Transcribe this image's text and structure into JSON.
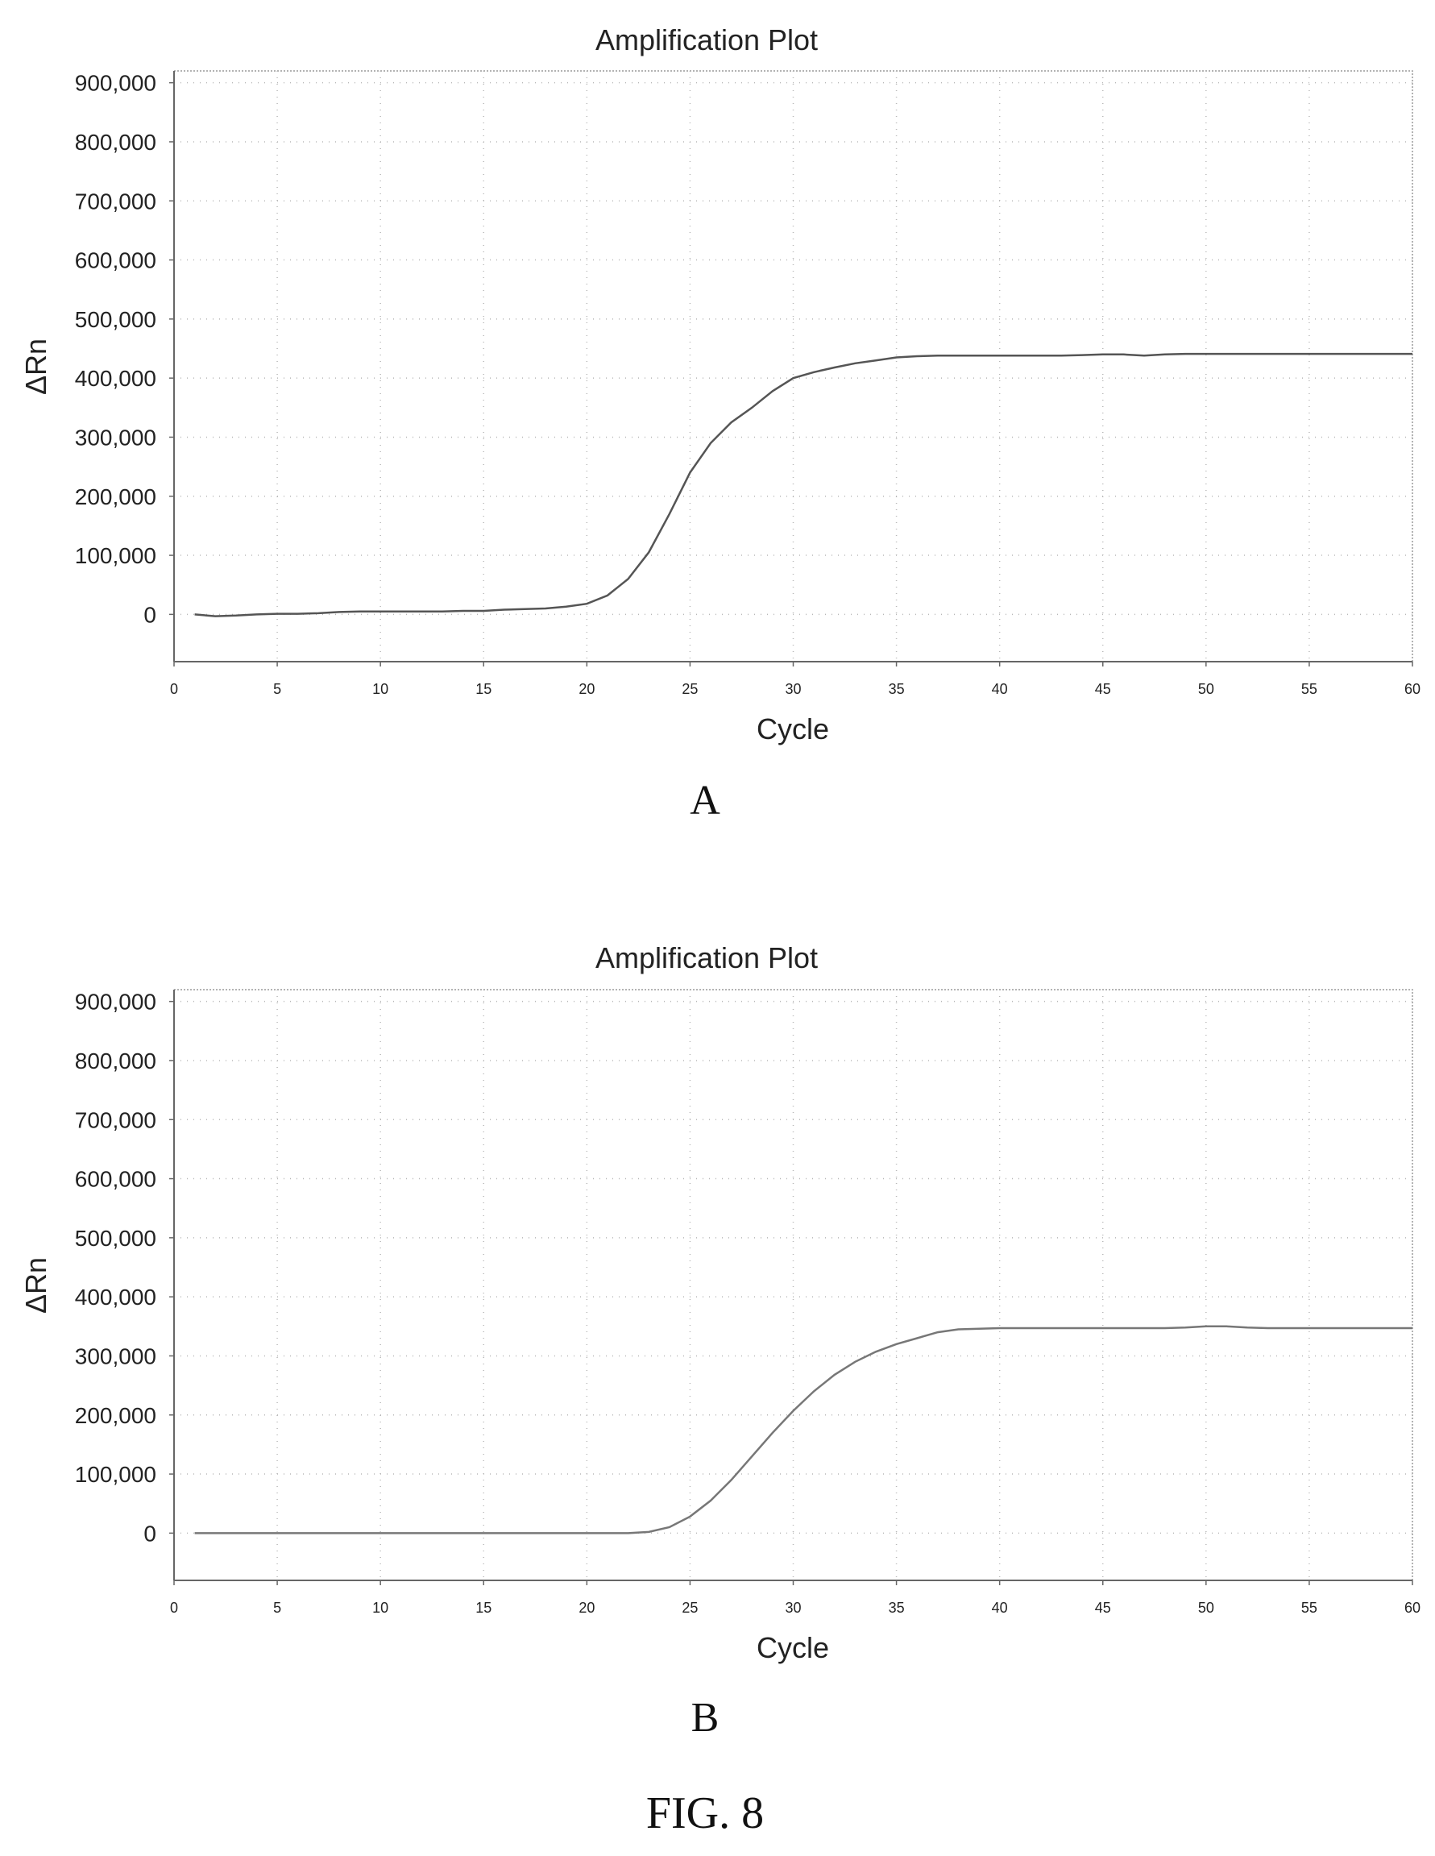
{
  "figure_caption": "FIG. 8",
  "chart_data": [
    {
      "panel": "A",
      "type": "line",
      "title": "Amplification Plot",
      "xlabel": "Cycle",
      "ylabel": "ΔRn",
      "xlim": [
        0,
        60
      ],
      "ylim": [
        -80000,
        920000
      ],
      "xticks": [
        0,
        5,
        10,
        15,
        20,
        25,
        30,
        35,
        40,
        45,
        50,
        55,
        60
      ],
      "yticks": [
        0,
        100000,
        200000,
        300000,
        400000,
        500000,
        600000,
        700000,
        800000,
        900000
      ],
      "ytick_labels": [
        "0",
        "100,000",
        "200,000",
        "300,000",
        "400,000",
        "500,000",
        "600,000",
        "700,000",
        "800,000",
        "900,000"
      ],
      "grid": true,
      "series": [
        {
          "x": [
            1,
            2,
            3,
            4,
            5,
            6,
            7,
            8,
            9,
            10,
            11,
            12,
            13,
            14,
            15,
            16,
            17,
            18,
            19,
            20,
            21,
            22,
            23,
            24,
            25,
            26,
            27,
            28,
            29,
            30,
            31,
            32,
            33,
            34,
            35,
            36,
            37,
            38,
            39,
            40,
            41,
            42,
            43,
            44,
            45,
            46,
            47,
            48,
            49,
            50,
            51,
            52,
            53,
            54,
            55,
            56,
            57,
            58,
            59,
            60
          ],
          "y": [
            0,
            -3000,
            -2000,
            0,
            1000,
            1000,
            2000,
            4000,
            5000,
            5000,
            5000,
            5000,
            5000,
            6000,
            6000,
            8000,
            9000,
            10000,
            13000,
            18000,
            32000,
            60000,
            105000,
            170000,
            240000,
            290000,
            325000,
            350000,
            378000,
            400000,
            410000,
            418000,
            425000,
            430000,
            435000,
            437000,
            438000,
            438000,
            438000,
            438000,
            438000,
            438000,
            438000,
            439000,
            440000,
            440000,
            438000,
            440000,
            441000,
            441000,
            441000,
            441000,
            441000,
            441000,
            441000,
            441000,
            441000,
            441000,
            441000,
            441000
          ]
        }
      ]
    },
    {
      "panel": "B",
      "type": "line",
      "title": "Amplification Plot",
      "xlabel": "Cycle",
      "ylabel": "ΔRn",
      "xlim": [
        0,
        60
      ],
      "ylim": [
        -80000,
        920000
      ],
      "xticks": [
        0,
        5,
        10,
        15,
        20,
        25,
        30,
        35,
        40,
        45,
        50,
        55,
        60
      ],
      "yticks": [
        0,
        100000,
        200000,
        300000,
        400000,
        500000,
        600000,
        700000,
        800000,
        900000
      ],
      "ytick_labels": [
        "0",
        "100,000",
        "200,000",
        "300,000",
        "400,000",
        "500,000",
        "600,000",
        "700,000",
        "800,000",
        "900,000"
      ],
      "grid": true,
      "series": [
        {
          "x": [
            1,
            2,
            3,
            4,
            5,
            6,
            7,
            8,
            9,
            10,
            11,
            12,
            13,
            14,
            15,
            16,
            17,
            18,
            19,
            20,
            21,
            22,
            23,
            24,
            25,
            26,
            27,
            28,
            29,
            30,
            31,
            32,
            33,
            34,
            35,
            36,
            37,
            38,
            39,
            40,
            41,
            42,
            43,
            44,
            45,
            46,
            47,
            48,
            49,
            50,
            51,
            52,
            53,
            54,
            55,
            56,
            57,
            58,
            59,
            60
          ],
          "y": [
            0,
            0,
            0,
            0,
            0,
            0,
            0,
            0,
            0,
            0,
            0,
            0,
            0,
            0,
            0,
            0,
            0,
            0,
            0,
            0,
            0,
            0,
            2000,
            10000,
            28000,
            55000,
            90000,
            130000,
            170000,
            207000,
            240000,
            268000,
            290000,
            307000,
            320000,
            330000,
            340000,
            345000,
            346000,
            347000,
            347000,
            347000,
            347000,
            347000,
            347000,
            347000,
            347000,
            347000,
            348000,
            350000,
            350000,
            348000,
            347000,
            347000,
            347000,
            347000,
            347000,
            347000,
            347000,
            347000
          ]
        }
      ]
    }
  ]
}
